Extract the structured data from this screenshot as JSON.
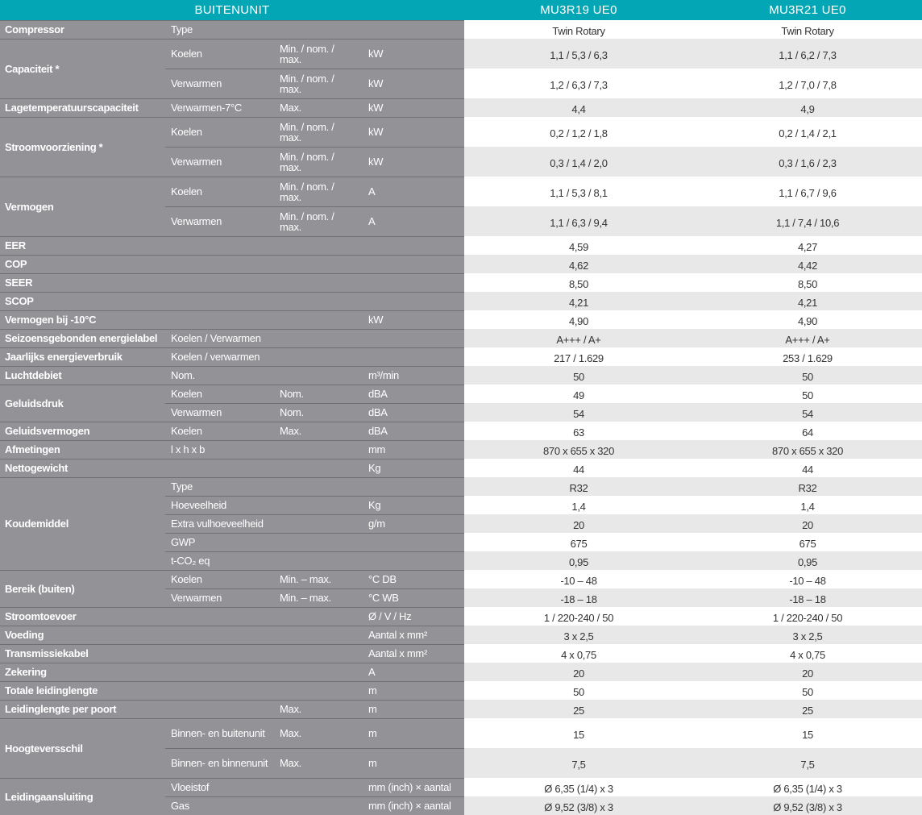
{
  "header": {
    "title": "BUITENUNIT",
    "models": [
      "MU3R19 UE0",
      "MU3R21 UE0"
    ]
  },
  "colors": {
    "header": "#02a6b5",
    "label_bg": "#929297",
    "stripe": "#e8e8e8"
  },
  "groups": [
    {
      "label": "Compressor",
      "rows": [
        [
          "Type",
          "",
          "",
          "Twin Rotary",
          "Twin Rotary"
        ]
      ]
    },
    {
      "label": "Capaciteit *",
      "rows": [
        [
          "Koelen",
          "Min. / nom. / max.",
          "kW",
          "1,1 / 5,3 / 6,3",
          "1,1 / 6,2 / 7,3"
        ],
        [
          "Verwarmen",
          "Min. / nom. / max.",
          "kW",
          "1,2 / 6,3 / 7,3",
          "1,2 / 7,0 / 7,8"
        ]
      ]
    },
    {
      "label": "Lagetemperatuurscapaciteit",
      "rows": [
        [
          "Verwarmen-7°C",
          "Max.",
          "kW",
          "4,4",
          "4,9"
        ]
      ]
    },
    {
      "label": "Stroomvoorziening *",
      "rows": [
        [
          "Koelen",
          "Min. / nom. / max.",
          "kW",
          "0,2 / 1,2 / 1,8",
          "0,2 / 1,4 / 2,1"
        ],
        [
          "Verwarmen",
          "Min. / nom. / max.",
          "kW",
          "0,3 / 1,4 / 2,0",
          "0,3 / 1,6 / 2,3"
        ]
      ]
    },
    {
      "label": "Vermogen",
      "rows": [
        [
          "Koelen",
          "Min. / nom. / max.",
          "A",
          "1,1 / 5,3 / 8,1",
          "1,1 / 6,7 / 9,6"
        ],
        [
          "Verwarmen",
          "Min. / nom. / max.",
          "A",
          "1,1 / 6,3 / 9,4",
          "1,1 / 7,4 / 10,6"
        ]
      ]
    },
    {
      "label": "EER",
      "rows": [
        [
          "",
          "",
          "",
          "4,59",
          "4,27"
        ]
      ]
    },
    {
      "label": "COP",
      "rows": [
        [
          "",
          "",
          "",
          "4,62",
          "4,42"
        ]
      ]
    },
    {
      "label": "SEER",
      "rows": [
        [
          "",
          "",
          "",
          "8,50",
          "8,50"
        ]
      ]
    },
    {
      "label": "SCOP",
      "rows": [
        [
          "",
          "",
          "",
          "4,21",
          "4,21"
        ]
      ]
    },
    {
      "label": "Vermogen bij -10°C",
      "rows": [
        [
          "",
          "",
          "kW",
          "4,90",
          "4,90"
        ]
      ]
    },
    {
      "label": "Seizoensgebonden energielabel",
      "rows": [
        [
          "Koelen / Verwarmen",
          "",
          "",
          "A+++ / A+",
          "A+++ / A+"
        ]
      ]
    },
    {
      "label": "Jaarlijks energieverbruik",
      "rows": [
        [
          "Koelen / verwarmen",
          "",
          "",
          "217 / 1.629",
          "253 / 1.629"
        ]
      ]
    },
    {
      "label": "Luchtdebiet",
      "rows": [
        [
          "Nom.",
          "",
          "m³/min",
          "50",
          "50"
        ]
      ]
    },
    {
      "label": "Geluidsdruk",
      "rows": [
        [
          "Koelen",
          "Nom.",
          "dBA",
          "49",
          "50"
        ],
        [
          "Verwarmen",
          "Nom.",
          "dBA",
          "54",
          "54"
        ]
      ]
    },
    {
      "label": "Geluidsvermogen",
      "rows": [
        [
          "Koelen",
          "Max.",
          "dBA",
          "63",
          "64"
        ]
      ]
    },
    {
      "label": "Afmetingen",
      "rows": [
        [
          "l x h x b",
          "",
          "mm",
          "870 x 655 x 320",
          "870 x 655 x 320"
        ]
      ]
    },
    {
      "label": "Nettogewicht",
      "rows": [
        [
          "",
          "",
          "Kg",
          "44",
          "44"
        ]
      ]
    },
    {
      "label": "Koudemiddel",
      "rows": [
        [
          "Type",
          "",
          "",
          "R32",
          "R32"
        ],
        [
          "Hoeveelheid",
          "",
          "Kg",
          "1,4",
          "1,4"
        ],
        [
          "Extra vulhoeveelheid",
          "",
          "g/m",
          "20",
          "20"
        ],
        [
          "GWP",
          "",
          "",
          "675",
          "675"
        ],
        [
          "t-CO₂ eq",
          "",
          "",
          "0,95",
          "0,95"
        ]
      ]
    },
    {
      "label": "Bereik (buiten)",
      "rows": [
        [
          "Koelen",
          "Min. – max.",
          "°C DB",
          "-10 – 48",
          "-10 – 48"
        ],
        [
          "Verwarmen",
          "Min. – max.",
          "°C WB",
          "-18 – 18",
          "-18 – 18"
        ]
      ]
    },
    {
      "label": "Stroomtoevoer",
      "rows": [
        [
          "",
          "",
          "Ø / V / Hz",
          "1 / 220-240 / 50",
          "1 / 220-240 / 50"
        ]
      ]
    },
    {
      "label": "Voeding",
      "rows": [
        [
          "",
          "",
          "Aantal x mm²",
          "3 x 2,5",
          "3 x 2,5"
        ]
      ]
    },
    {
      "label": "Transmissiekabel",
      "rows": [
        [
          "",
          "",
          "Aantal x mm²",
          "4 x 0,75",
          "4 x 0,75"
        ]
      ]
    },
    {
      "label": "Zekering",
      "rows": [
        [
          "",
          "",
          "A",
          "20",
          "20"
        ]
      ]
    },
    {
      "label": "Totale leidinglengte",
      "rows": [
        [
          "",
          "",
          "m",
          "50",
          "50"
        ]
      ]
    },
    {
      "label": "Leidinglengte per poort",
      "rows": [
        [
          "",
          "Max.",
          "m",
          "25",
          "25"
        ]
      ]
    },
    {
      "label": "Hoogteversschil",
      "rows": [
        [
          "Binnen- en buitenunit",
          "Max.",
          "m",
          "15",
          "15"
        ],
        [
          "Binnen- en binnenunit",
          "Max.",
          "m",
          "7,5",
          "7,5"
        ]
      ]
    },
    {
      "label": "Leidingaansluiting",
      "rows": [
        [
          "Vloeistof",
          "",
          "mm (inch) × aantal",
          "Ø 6,35 (1/4) x 3",
          "Ø 6,35 (1/4) x 3"
        ],
        [
          "Gas",
          "",
          "mm (inch) × aantal",
          "Ø 9,52 (3/8) x 3",
          "Ø 9,52 (3/8) x 3"
        ]
      ]
    }
  ]
}
